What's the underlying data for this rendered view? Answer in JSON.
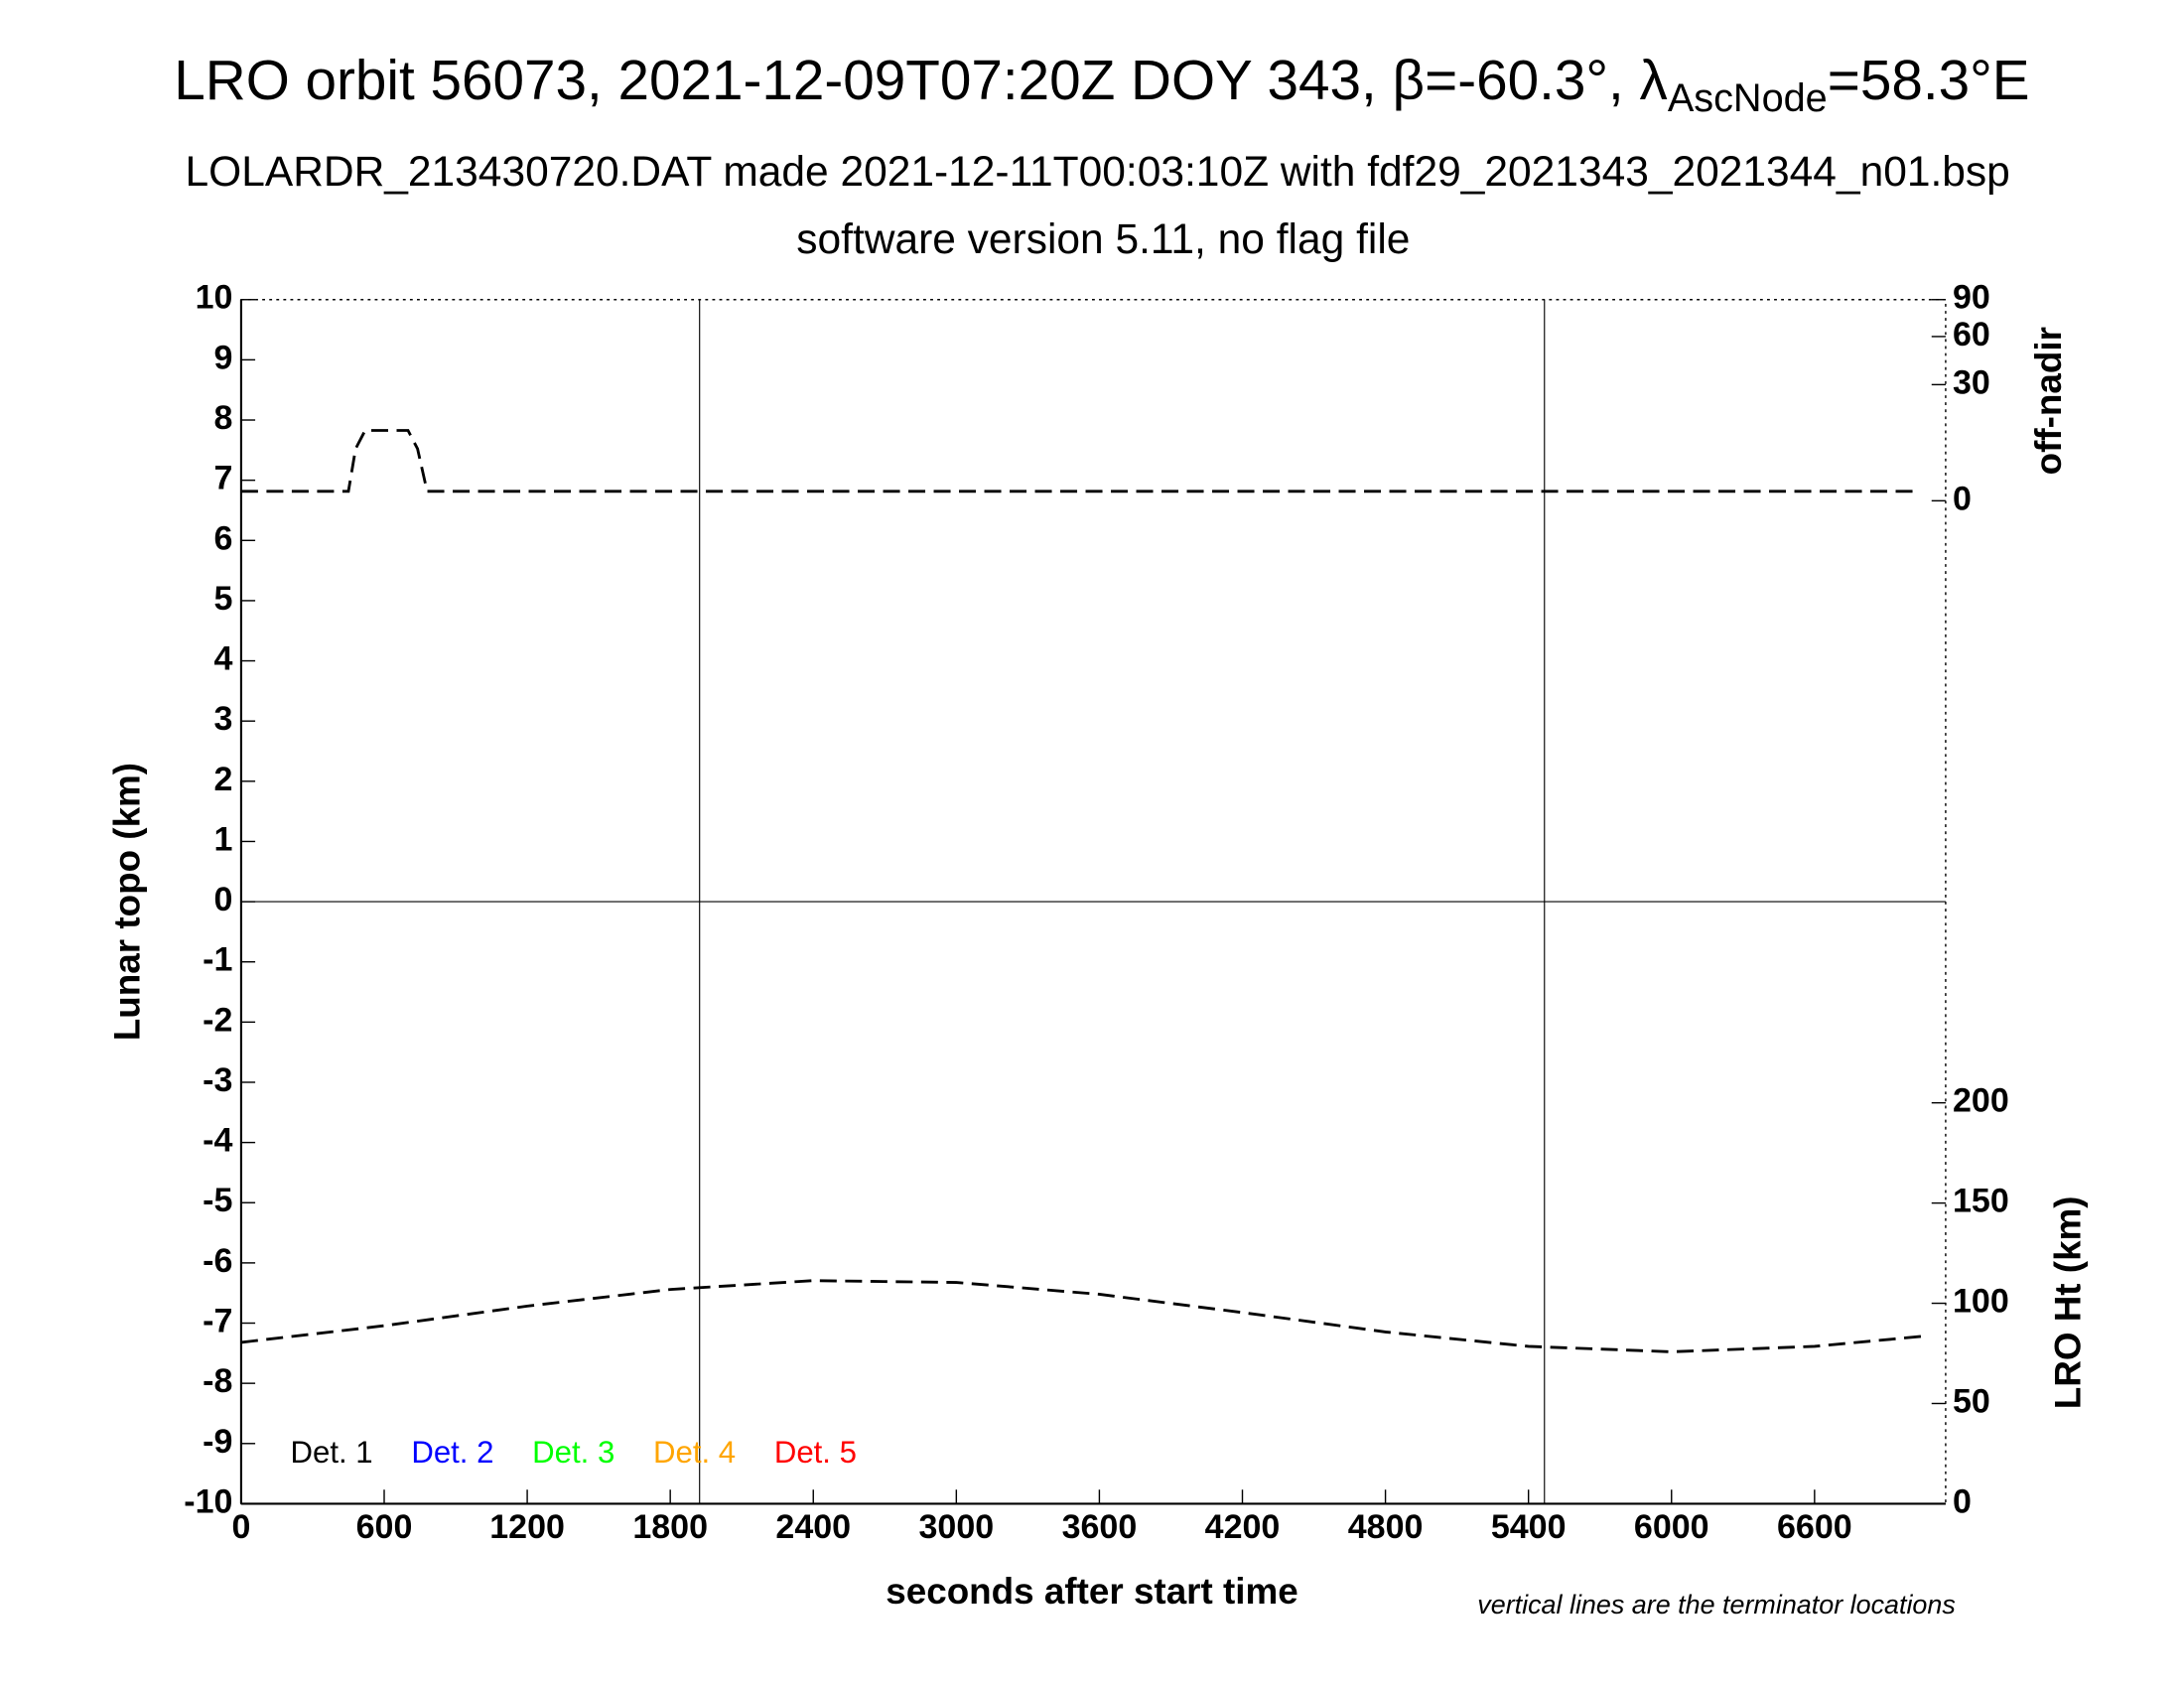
{
  "chart_data": {
    "type": "line",
    "title": "LRO orbit 56073, 2021-12-09T07:20Z DOY 343, β=-60.3°, λ",
    "title_subscript": "AscNode",
    "title_suffix": "=58.3°E",
    "subtitle": "LOLARDR_213430720.DAT made 2021-12-11T00:03:10Z with fdf29_2021343_2021344_n01.bsp",
    "subtitle2": "software version 5.11, no flag file",
    "xlabel": "seconds after start time",
    "ylabel": "Lunar topo (km)",
    "y2label": "off-nadir",
    "y3label": "LRO Ht (km)",
    "annotation": "vertical lines are the terminator locations",
    "xlim": [
      0,
      7150
    ],
    "xticks": [
      0,
      600,
      1200,
      1800,
      2400,
      3000,
      3600,
      4200,
      4800,
      5400,
      6000,
      6600
    ],
    "ylim": [
      -10,
      10
    ],
    "yticks": [
      -10,
      -9,
      -8,
      -7,
      -6,
      -5,
      -4,
      -3,
      -2,
      -1,
      0,
      1,
      2,
      3,
      4,
      5,
      6,
      7,
      8,
      9,
      10
    ],
    "y2lim": [
      0,
      90
    ],
    "y2ticks": [
      0,
      30,
      60,
      90
    ],
    "y2scale": "sqrt",
    "y3lim": [
      0,
      200
    ],
    "y3ticks": [
      0,
      50,
      100,
      150,
      200
    ],
    "vlines": [
      1923,
      5467
    ],
    "legend": [
      {
        "name": "Det. 1",
        "color": "#000000"
      },
      {
        "name": "Det. 2",
        "color": "#0000ff"
      },
      {
        "name": "Det. 3",
        "color": "#00ff00"
      },
      {
        "name": "Det. 4",
        "color": "#ffa500"
      },
      {
        "name": "Det. 5",
        "color": "#ff0000"
      }
    ],
    "series": [
      {
        "color": "#000000",
        "axis": "y2",
        "x": [
          0,
          450,
          480,
          520,
          700,
          740,
          780,
          7040
        ],
        "values": [
          0.2,
          0.2,
          6,
          11,
          11,
          6,
          0.2,
          0.2
        ]
      },
      {
        "color": "#000000",
        "axis": "y3",
        "x": [
          0,
          600,
          1200,
          1800,
          2400,
          3000,
          3600,
          4200,
          4800,
          5400,
          6000,
          6600,
          7050
        ],
        "values": [
          80.5,
          88.8,
          98.6,
          106.9,
          111.3,
          110.4,
          104.5,
          95.4,
          85.7,
          78.5,
          75.8,
          78.5,
          83.5
        ]
      }
    ]
  }
}
